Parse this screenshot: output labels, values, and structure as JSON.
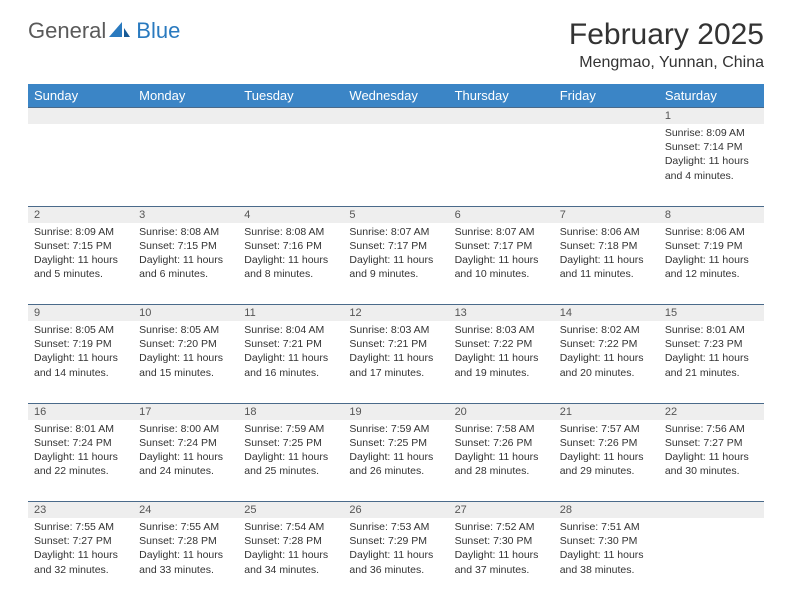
{
  "logo": {
    "text1": "General",
    "text2": "Blue"
  },
  "title": "February 2025",
  "subtitle": "Mengmao, Yunnan, China",
  "colors": {
    "header_bg": "#3b85c6",
    "header_text": "#ffffff",
    "daynum_bg": "#eeeeee",
    "daynum_border": "#4a6a8a",
    "body_text": "#333333",
    "logo_gray": "#5a5a5a",
    "logo_blue": "#2a7abf"
  },
  "typography": {
    "title_fontsize": 30,
    "subtitle_fontsize": 16,
    "header_fontsize": 13,
    "daynum_fontsize": 11,
    "cell_fontsize": 10.5
  },
  "weekdays": [
    "Sunday",
    "Monday",
    "Tuesday",
    "Wednesday",
    "Thursday",
    "Friday",
    "Saturday"
  ],
  "weeks": [
    [
      null,
      null,
      null,
      null,
      null,
      null,
      {
        "n": "1",
        "sunrise": "Sunrise: 8:09 AM",
        "sunset": "Sunset: 7:14 PM",
        "daylight": "Daylight: 11 hours and 4 minutes."
      }
    ],
    [
      {
        "n": "2",
        "sunrise": "Sunrise: 8:09 AM",
        "sunset": "Sunset: 7:15 PM",
        "daylight": "Daylight: 11 hours and 5 minutes."
      },
      {
        "n": "3",
        "sunrise": "Sunrise: 8:08 AM",
        "sunset": "Sunset: 7:15 PM",
        "daylight": "Daylight: 11 hours and 6 minutes."
      },
      {
        "n": "4",
        "sunrise": "Sunrise: 8:08 AM",
        "sunset": "Sunset: 7:16 PM",
        "daylight": "Daylight: 11 hours and 8 minutes."
      },
      {
        "n": "5",
        "sunrise": "Sunrise: 8:07 AM",
        "sunset": "Sunset: 7:17 PM",
        "daylight": "Daylight: 11 hours and 9 minutes."
      },
      {
        "n": "6",
        "sunrise": "Sunrise: 8:07 AM",
        "sunset": "Sunset: 7:17 PM",
        "daylight": "Daylight: 11 hours and 10 minutes."
      },
      {
        "n": "7",
        "sunrise": "Sunrise: 8:06 AM",
        "sunset": "Sunset: 7:18 PM",
        "daylight": "Daylight: 11 hours and 11 minutes."
      },
      {
        "n": "8",
        "sunrise": "Sunrise: 8:06 AM",
        "sunset": "Sunset: 7:19 PM",
        "daylight": "Daylight: 11 hours and 12 minutes."
      }
    ],
    [
      {
        "n": "9",
        "sunrise": "Sunrise: 8:05 AM",
        "sunset": "Sunset: 7:19 PM",
        "daylight": "Daylight: 11 hours and 14 minutes."
      },
      {
        "n": "10",
        "sunrise": "Sunrise: 8:05 AM",
        "sunset": "Sunset: 7:20 PM",
        "daylight": "Daylight: 11 hours and 15 minutes."
      },
      {
        "n": "11",
        "sunrise": "Sunrise: 8:04 AM",
        "sunset": "Sunset: 7:21 PM",
        "daylight": "Daylight: 11 hours and 16 minutes."
      },
      {
        "n": "12",
        "sunrise": "Sunrise: 8:03 AM",
        "sunset": "Sunset: 7:21 PM",
        "daylight": "Daylight: 11 hours and 17 minutes."
      },
      {
        "n": "13",
        "sunrise": "Sunrise: 8:03 AM",
        "sunset": "Sunset: 7:22 PM",
        "daylight": "Daylight: 11 hours and 19 minutes."
      },
      {
        "n": "14",
        "sunrise": "Sunrise: 8:02 AM",
        "sunset": "Sunset: 7:22 PM",
        "daylight": "Daylight: 11 hours and 20 minutes."
      },
      {
        "n": "15",
        "sunrise": "Sunrise: 8:01 AM",
        "sunset": "Sunset: 7:23 PM",
        "daylight": "Daylight: 11 hours and 21 minutes."
      }
    ],
    [
      {
        "n": "16",
        "sunrise": "Sunrise: 8:01 AM",
        "sunset": "Sunset: 7:24 PM",
        "daylight": "Daylight: 11 hours and 22 minutes."
      },
      {
        "n": "17",
        "sunrise": "Sunrise: 8:00 AM",
        "sunset": "Sunset: 7:24 PM",
        "daylight": "Daylight: 11 hours and 24 minutes."
      },
      {
        "n": "18",
        "sunrise": "Sunrise: 7:59 AM",
        "sunset": "Sunset: 7:25 PM",
        "daylight": "Daylight: 11 hours and 25 minutes."
      },
      {
        "n": "19",
        "sunrise": "Sunrise: 7:59 AM",
        "sunset": "Sunset: 7:25 PM",
        "daylight": "Daylight: 11 hours and 26 minutes."
      },
      {
        "n": "20",
        "sunrise": "Sunrise: 7:58 AM",
        "sunset": "Sunset: 7:26 PM",
        "daylight": "Daylight: 11 hours and 28 minutes."
      },
      {
        "n": "21",
        "sunrise": "Sunrise: 7:57 AM",
        "sunset": "Sunset: 7:26 PM",
        "daylight": "Daylight: 11 hours and 29 minutes."
      },
      {
        "n": "22",
        "sunrise": "Sunrise: 7:56 AM",
        "sunset": "Sunset: 7:27 PM",
        "daylight": "Daylight: 11 hours and 30 minutes."
      }
    ],
    [
      {
        "n": "23",
        "sunrise": "Sunrise: 7:55 AM",
        "sunset": "Sunset: 7:27 PM",
        "daylight": "Daylight: 11 hours and 32 minutes."
      },
      {
        "n": "24",
        "sunrise": "Sunrise: 7:55 AM",
        "sunset": "Sunset: 7:28 PM",
        "daylight": "Daylight: 11 hours and 33 minutes."
      },
      {
        "n": "25",
        "sunrise": "Sunrise: 7:54 AM",
        "sunset": "Sunset: 7:28 PM",
        "daylight": "Daylight: 11 hours and 34 minutes."
      },
      {
        "n": "26",
        "sunrise": "Sunrise: 7:53 AM",
        "sunset": "Sunset: 7:29 PM",
        "daylight": "Daylight: 11 hours and 36 minutes."
      },
      {
        "n": "27",
        "sunrise": "Sunrise: 7:52 AM",
        "sunset": "Sunset: 7:30 PM",
        "daylight": "Daylight: 11 hours and 37 minutes."
      },
      {
        "n": "28",
        "sunrise": "Sunrise: 7:51 AM",
        "sunset": "Sunset: 7:30 PM",
        "daylight": "Daylight: 11 hours and 38 minutes."
      },
      null
    ]
  ]
}
